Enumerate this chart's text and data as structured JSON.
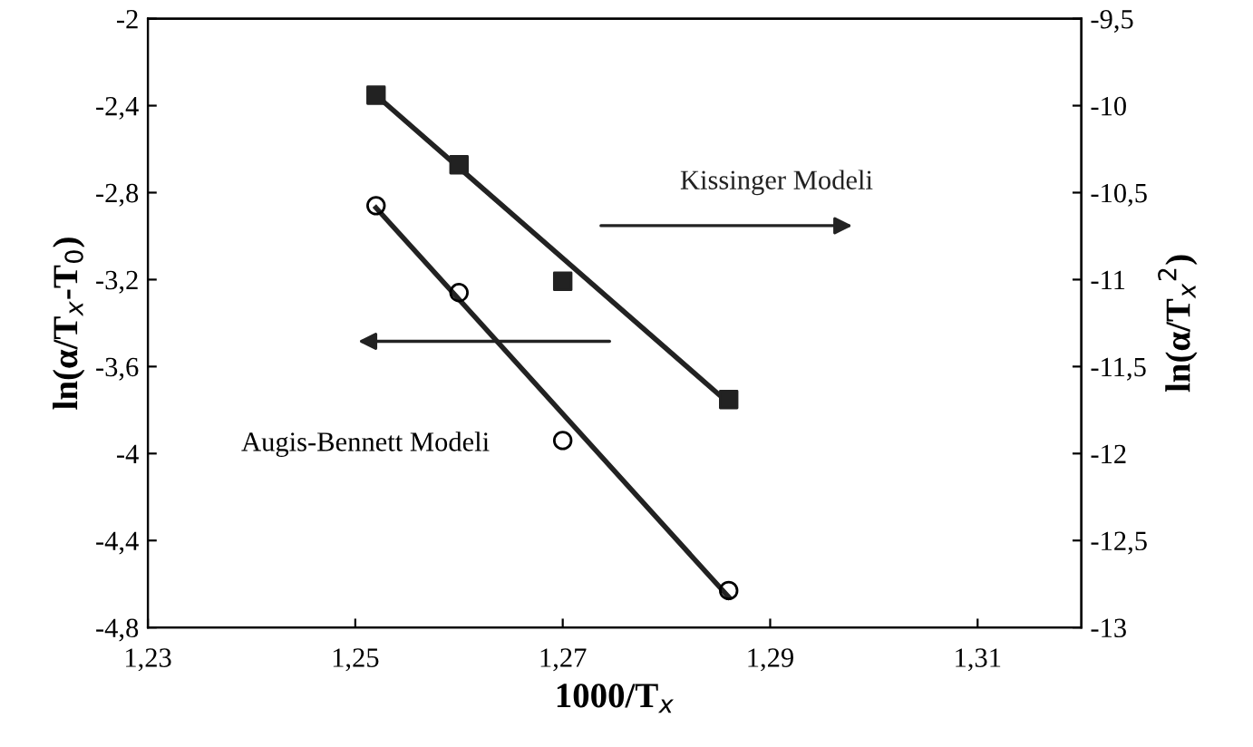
{
  "chart_data": {
    "type": "scatter",
    "xlabel": "1000/T$_{x}$",
    "ylabel": "ln(α/T$_{x}$-T$_{0}$)",
    "y2label": "ln(α/T$_{x}$$^{2}$)",
    "xlim": [
      1.23,
      1.32
    ],
    "xticks": [
      {
        "value": 1.23,
        "label": "1,23"
      },
      {
        "value": 1.25,
        "label": "1,25"
      },
      {
        "value": 1.27,
        "label": "1,27"
      },
      {
        "value": 1.29,
        "label": "1,29"
      },
      {
        "value": 1.31,
        "label": "1,31"
      }
    ],
    "ylim": [
      -4.8,
      -2
    ],
    "yticks": [
      {
        "value": -4.8,
        "label": "-4,8"
      },
      {
        "value": -4.4,
        "label": "-4,4"
      },
      {
        "value": -4,
        "label": "-4"
      },
      {
        "value": -3.6,
        "label": "-3,6"
      },
      {
        "value": -3.2,
        "label": "-3,2"
      },
      {
        "value": -2.8,
        "label": "-2,8"
      },
      {
        "value": -2.4,
        "label": "-2,4"
      },
      {
        "value": -2,
        "label": "-2"
      }
    ],
    "y2lim": [
      -13,
      -9.5
    ],
    "y2ticks": [
      {
        "value": -13,
        "label": "-13"
      },
      {
        "value": -12.5,
        "label": "-12,5"
      },
      {
        "value": -12,
        "label": "-12"
      },
      {
        "value": -11.5,
        "label": "-11,5"
      },
      {
        "value": -11,
        "label": "-11"
      },
      {
        "value": -10.5,
        "label": "-10,5"
      },
      {
        "value": -10,
        "label": "-10"
      },
      {
        "value": -9.5,
        "label": "-9,5"
      }
    ],
    "grid": false,
    "legend": false,
    "series": [
      {
        "name": "Augis-Bennett Modeli",
        "marker": "circle",
        "color": "#000000",
        "x": [
          1.252,
          1.26,
          1.27,
          1.286
        ],
        "values": [
          -2.86,
          -3.26,
          -3.94,
          -4.63
        ]
      },
      {
        "type": "line",
        "marker": "none",
        "color": "#222222",
        "x": [
          1.252,
          1.286
        ],
        "values": [
          -2.87,
          -4.66
        ]
      },
      {
        "name": "Kissinger Modeli",
        "marker": "square",
        "axis": "y2",
        "color": "#222222",
        "x": [
          1.252,
          1.26,
          1.27,
          1.286
        ],
        "values": [
          -9.94,
          -10.34,
          -11.01,
          -11.69
        ]
      },
      {
        "type": "line",
        "marker": "none",
        "axis": "y2",
        "color": "#222222",
        "x": [
          1.252,
          1.286
        ],
        "values": [
          -9.94,
          -11.71
        ]
      }
    ]
  }
}
